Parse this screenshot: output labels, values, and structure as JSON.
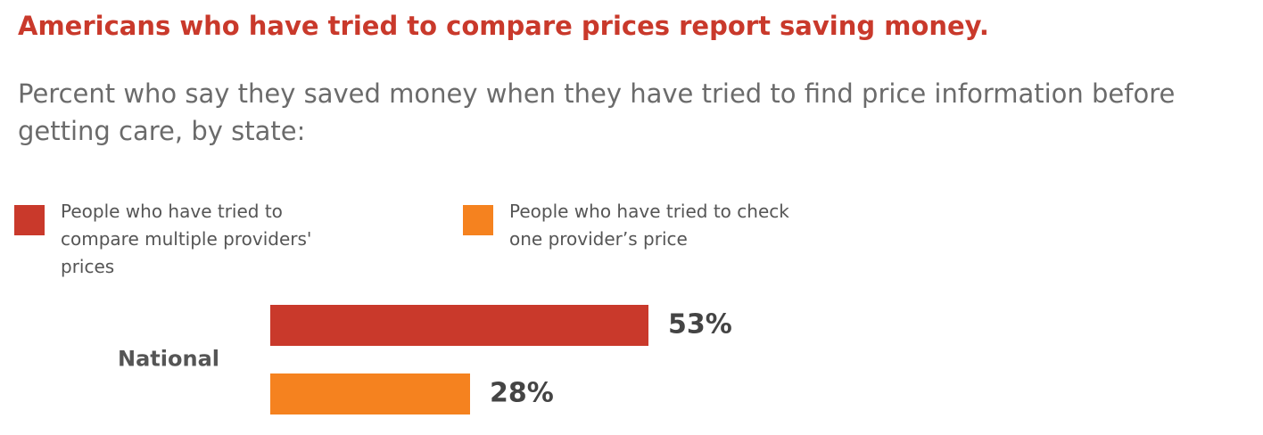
{
  "chart_data": {
    "type": "bar",
    "orientation": "horizontal",
    "title": "Americans who have tried to compare prices report saving money.",
    "subtitle": "Percent who say they saved money when they have tried to find price information before getting care, by state:",
    "categories": [
      "National"
    ],
    "series": [
      {
        "name": "People who have tried to compare multiple providers' prices",
        "color": "#c9392b",
        "values": [
          53
        ],
        "value_labels": [
          "53%"
        ]
      },
      {
        "name": "People who have tried to check one provider’s price",
        "color": "#f5821f",
        "values": [
          28
        ],
        "value_labels": [
          "28%"
        ]
      }
    ]
  }
}
